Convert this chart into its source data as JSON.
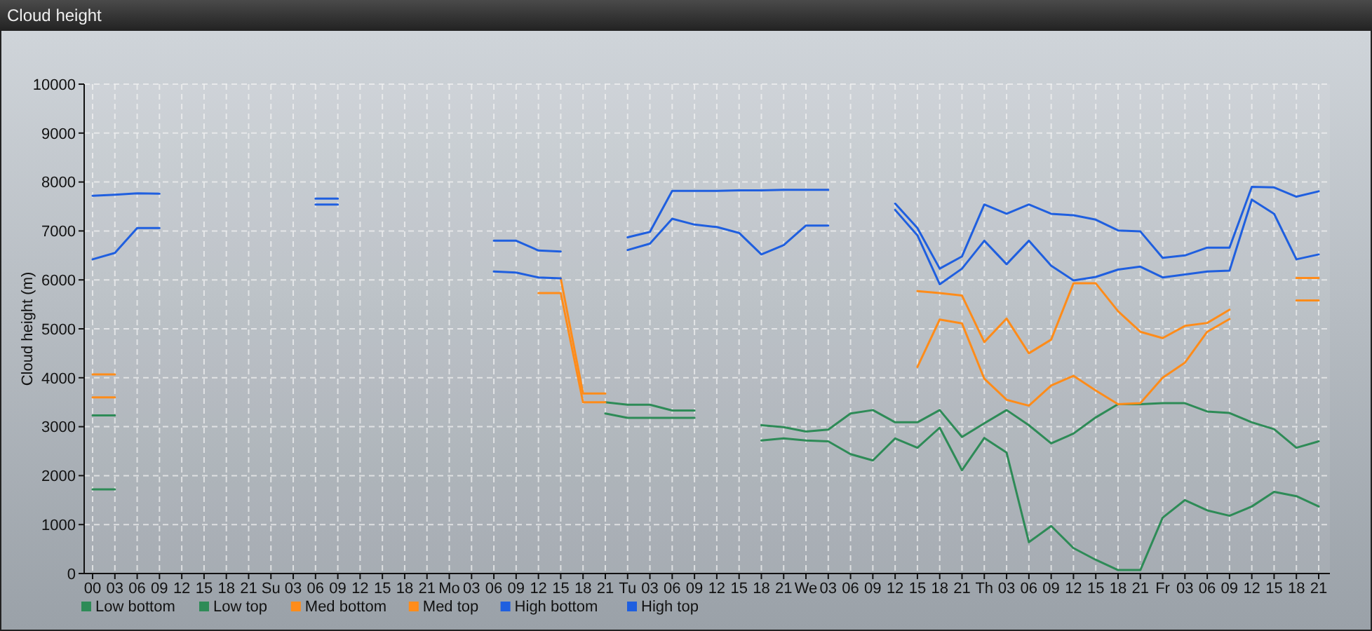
{
  "chart_data": {
    "type": "line",
    "title": "Cloud height",
    "ylabel": "Cloud height (m)",
    "categories": [
      "00",
      "03",
      "06",
      "09",
      "12",
      "15",
      "18",
      "21",
      "Su",
      "03",
      "06",
      "09",
      "12",
      "15",
      "18",
      "21",
      "Mo",
      "03",
      "06",
      "09",
      "12",
      "15",
      "18",
      "21",
      "Tu",
      "03",
      "06",
      "09",
      "12",
      "15",
      "18",
      "21",
      "We",
      "03",
      "06",
      "09",
      "12",
      "15",
      "18",
      "21",
      "Th",
      "03",
      "06",
      "09",
      "12",
      "15",
      "18",
      "21",
      "Fr",
      "03",
      "06",
      "09",
      "12",
      "15",
      "18",
      "21"
    ],
    "ylim": [
      0,
      10000
    ],
    "yticks": [
      0,
      1000,
      2000,
      3000,
      4000,
      5000,
      6000,
      7000,
      8000,
      9000,
      10000
    ],
    "grid": true,
    "legend": "bottom left",
    "marker": "none",
    "line_style": "solid",
    "series": [
      {
        "name": "Low bottom",
        "color": "#2e8b57",
        "values": [
          1720,
          1720,
          null,
          null,
          null,
          null,
          null,
          null,
          null,
          null,
          null,
          null,
          null,
          null,
          null,
          null,
          null,
          null,
          null,
          null,
          null,
          null,
          null,
          3270,
          3180,
          3180,
          3180,
          3180,
          null,
          null,
          2720,
          2760,
          2720,
          2700,
          2440,
          2310,
          2760,
          2570,
          2980,
          2110,
          2770,
          2470,
          640,
          970,
          520,
          280,
          70,
          70,
          1140,
          1500,
          1290,
          1180,
          1370,
          1670,
          1580,
          1370
        ]
      },
      {
        "name": "Low top",
        "color": "#2e8b57",
        "values": [
          3230,
          3230,
          null,
          null,
          null,
          null,
          null,
          null,
          null,
          null,
          null,
          null,
          null,
          null,
          null,
          null,
          null,
          null,
          null,
          null,
          null,
          null,
          null,
          3500,
          3450,
          3450,
          3330,
          3330,
          null,
          null,
          3030,
          2990,
          2900,
          2940,
          3270,
          3340,
          3090,
          3090,
          3340,
          2790,
          3070,
          3340,
          3030,
          2660,
          2860,
          3190,
          3460,
          3460,
          3480,
          3480,
          3310,
          3280,
          3090,
          2950,
          2570,
          2700
        ]
      },
      {
        "name": "Med bottom",
        "color": "#ff8c1a",
        "values": [
          3600,
          3600,
          null,
          null,
          null,
          null,
          null,
          null,
          null,
          null,
          null,
          null,
          null,
          null,
          null,
          null,
          null,
          null,
          null,
          null,
          5730,
          5730,
          3500,
          3500,
          null,
          null,
          null,
          null,
          null,
          null,
          null,
          null,
          null,
          null,
          null,
          null,
          null,
          4220,
          5190,
          5110,
          3980,
          3550,
          3430,
          3840,
          4040,
          3740,
          3460,
          3480,
          4000,
          4310,
          4940,
          5200,
          null,
          null,
          5580,
          5580
        ]
      },
      {
        "name": "Med top",
        "color": "#ff8c1a",
        "values": [
          4070,
          4070,
          null,
          null,
          null,
          null,
          null,
          null,
          null,
          null,
          null,
          null,
          null,
          null,
          null,
          null,
          null,
          null,
          null,
          null,
          null,
          6030,
          3680,
          3680,
          null,
          null,
          null,
          null,
          null,
          null,
          null,
          null,
          null,
          null,
          null,
          null,
          null,
          5770,
          5730,
          5680,
          4730,
          5210,
          4500,
          4780,
          5930,
          5930,
          5360,
          4940,
          4810,
          5060,
          5120,
          5390,
          null,
          null,
          6040,
          6040
        ]
      },
      {
        "name": "High bottom",
        "color": "#1f5fdf",
        "values": [
          6420,
          6550,
          7060,
          7060,
          null,
          null,
          null,
          null,
          null,
          null,
          7540,
          7540,
          null,
          null,
          null,
          null,
          null,
          null,
          6170,
          6150,
          6050,
          6030,
          null,
          null,
          6610,
          6740,
          7250,
          7130,
          7080,
          6960,
          6520,
          6710,
          7110,
          7110,
          null,
          null,
          7430,
          6910,
          5910,
          6230,
          6800,
          6320,
          6800,
          6290,
          5990,
          6060,
          6210,
          6270,
          6050,
          6110,
          6170,
          6190,
          7640,
          7350,
          6420,
          6520
        ]
      },
      {
        "name": "High top",
        "color": "#1f5fdf",
        "values": [
          7720,
          7740,
          7770,
          7760,
          null,
          null,
          null,
          null,
          null,
          null,
          7660,
          7660,
          null,
          null,
          null,
          null,
          null,
          null,
          6800,
          6800,
          6600,
          6580,
          null,
          null,
          6870,
          6980,
          7820,
          7820,
          7820,
          7830,
          7830,
          7840,
          7840,
          7840,
          null,
          null,
          7560,
          7060,
          6230,
          6480,
          7540,
          7350,
          7540,
          7350,
          7320,
          7230,
          7010,
          6990,
          6450,
          6500,
          6660,
          6660,
          7900,
          7890,
          7700,
          7810
        ]
      }
    ]
  }
}
